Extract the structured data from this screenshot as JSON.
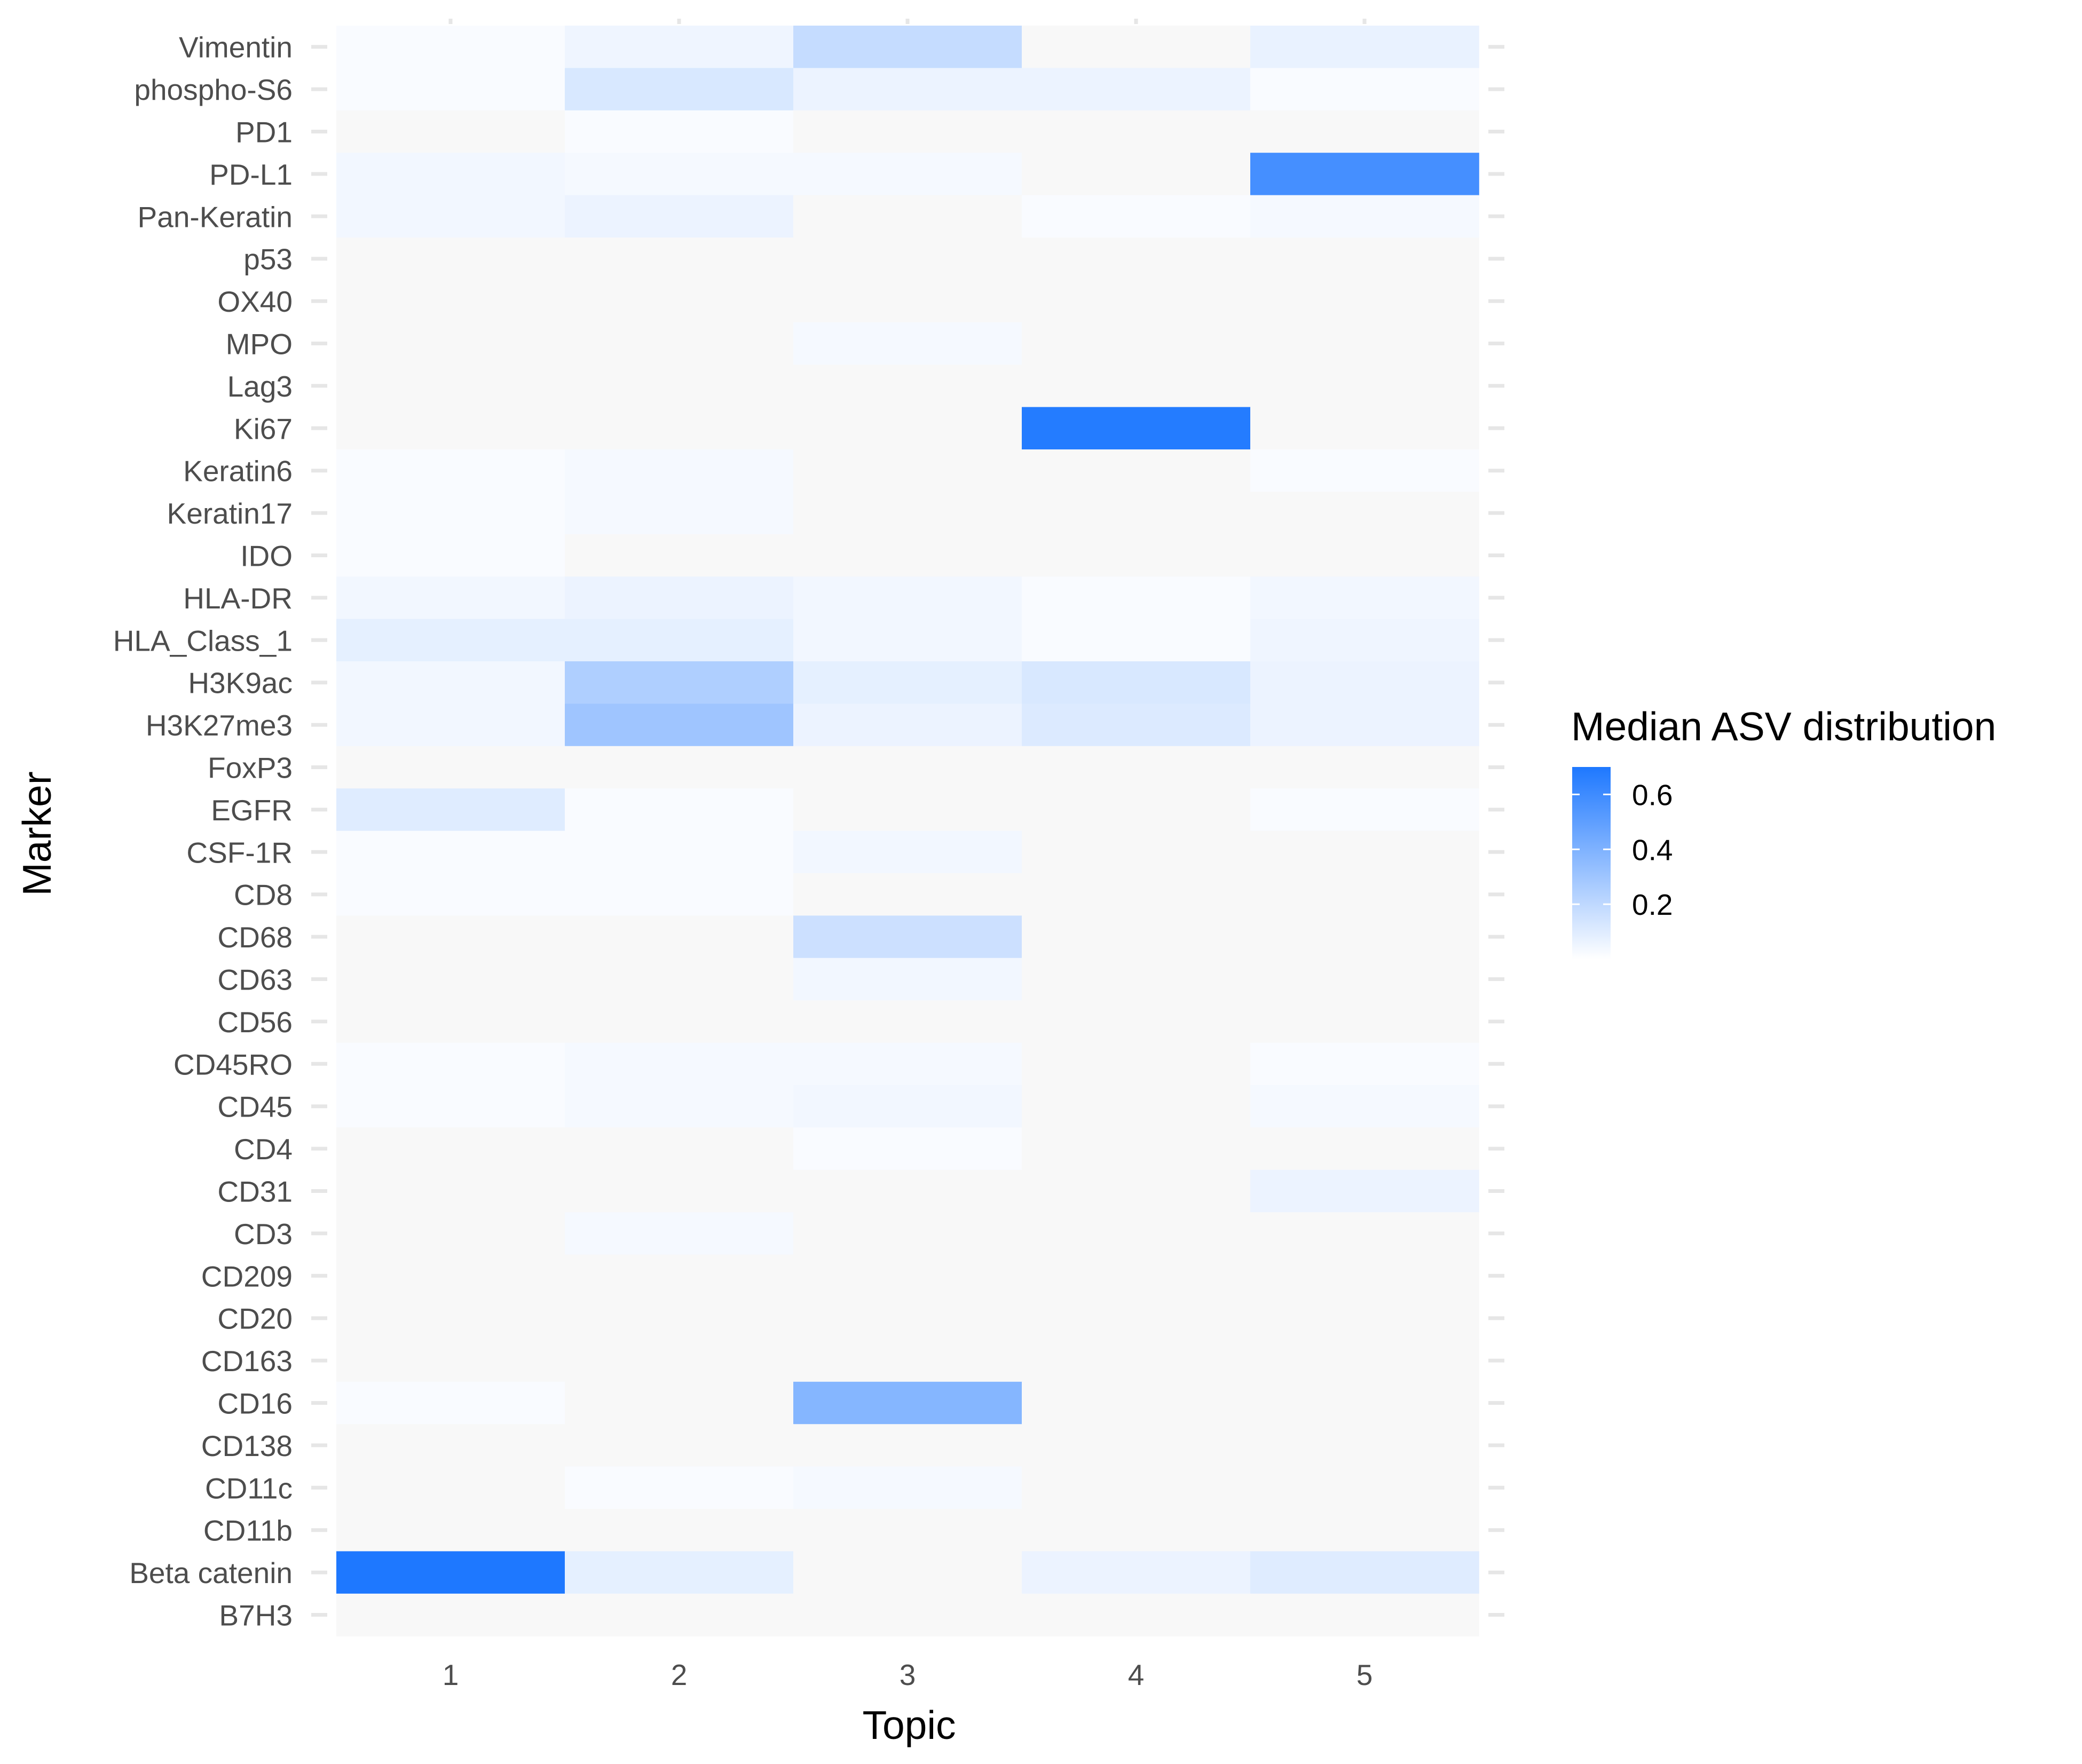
{
  "chart_data": {
    "type": "heatmap",
    "xlabel": "Topic",
    "ylabel": "Marker",
    "x_categories": [
      "1",
      "2",
      "3",
      "4",
      "5"
    ],
    "y_categories": [
      "Vimentin",
      "phospho-S6",
      "PD1",
      "PD-L1",
      "Pan-Keratin",
      "p53",
      "OX40",
      "MPO",
      "Lag3",
      "Ki67",
      "Keratin6",
      "Keratin17",
      "IDO",
      "HLA-DR",
      "HLA_Class_1",
      "H3K9ac",
      "H3K27me3",
      "FoxP3",
      "EGFR",
      "CSF-1R",
      "CD8",
      "CD68",
      "CD63",
      "CD56",
      "CD45RO",
      "CD45",
      "CD4",
      "CD31",
      "CD3",
      "CD209",
      "CD20",
      "CD163",
      "CD16",
      "CD138",
      "CD11c",
      "CD11b",
      "Beta catenin",
      "B7H3"
    ],
    "values": [
      [
        0.02,
        0.05,
        0.18,
        0.01,
        0.07
      ],
      [
        0.02,
        0.12,
        0.06,
        0.06,
        0.02
      ],
      [
        0.01,
        0.02,
        0.01,
        0.01,
        0.01
      ],
      [
        0.04,
        0.03,
        0.03,
        0.01,
        0.58
      ],
      [
        0.04,
        0.06,
        0.01,
        0.02,
        0.03
      ],
      [
        0.01,
        0.01,
        0.01,
        0.01,
        0.01
      ],
      [
        0.01,
        0.01,
        0.01,
        0.01,
        0.01
      ],
      [
        0.01,
        0.01,
        0.03,
        0.01,
        0.01
      ],
      [
        0.01,
        0.01,
        0.01,
        0.01,
        0.01
      ],
      [
        0.01,
        0.01,
        0.01,
        0.68,
        0.01
      ],
      [
        0.02,
        0.03,
        0.01,
        0.01,
        0.02
      ],
      [
        0.02,
        0.03,
        0.01,
        0.01,
        0.01
      ],
      [
        0.02,
        0.01,
        0.01,
        0.01,
        0.01
      ],
      [
        0.04,
        0.06,
        0.04,
        0.02,
        0.04
      ],
      [
        0.08,
        0.08,
        0.04,
        0.02,
        0.05
      ],
      [
        0.04,
        0.25,
        0.08,
        0.12,
        0.06
      ],
      [
        0.04,
        0.3,
        0.06,
        0.11,
        0.06
      ],
      [
        0.01,
        0.01,
        0.01,
        0.01,
        0.01
      ],
      [
        0.1,
        0.02,
        0.01,
        0.01,
        0.02
      ],
      [
        0.02,
        0.02,
        0.04,
        0.01,
        0.01
      ],
      [
        0.02,
        0.02,
        0.01,
        0.01,
        0.01
      ],
      [
        0.01,
        0.01,
        0.16,
        0.01,
        0.01
      ],
      [
        0.01,
        0.01,
        0.04,
        0.01,
        0.01
      ],
      [
        0.01,
        0.01,
        0.01,
        0.01,
        0.01
      ],
      [
        0.02,
        0.03,
        0.03,
        0.01,
        0.02
      ],
      [
        0.02,
        0.03,
        0.04,
        0.01,
        0.03
      ],
      [
        0.01,
        0.01,
        0.02,
        0.01,
        0.01
      ],
      [
        0.01,
        0.01,
        0.01,
        0.01,
        0.06
      ],
      [
        0.01,
        0.03,
        0.01,
        0.01,
        0.01
      ],
      [
        0.01,
        0.01,
        0.01,
        0.01,
        0.01
      ],
      [
        0.01,
        0.01,
        0.01,
        0.01,
        0.01
      ],
      [
        0.01,
        0.01,
        0.01,
        0.01,
        0.01
      ],
      [
        0.02,
        0.01,
        0.38,
        0.01,
        0.01
      ],
      [
        0.01,
        0.01,
        0.01,
        0.01,
        0.01
      ],
      [
        0.01,
        0.02,
        0.03,
        0.01,
        0.01
      ],
      [
        0.01,
        0.01,
        0.01,
        0.01,
        0.01
      ],
      [
        0.7,
        0.08,
        0.01,
        0.06,
        0.1
      ],
      [
        0.01,
        0.01,
        0.01,
        0.01,
        0.01
      ]
    ],
    "legend": {
      "title": "Median ASV distribution",
      "breaks": [
        0.6,
        0.4,
        0.2
      ],
      "break_labels": [
        "0.6",
        "0.4",
        "0.2"
      ],
      "range": [
        0.0,
        0.7
      ],
      "position": "right"
    },
    "colors": {
      "low": "#ffffff",
      "high": "#1e78ff",
      "panel_background": "#f8f8f8",
      "grid": "#e6e6e6",
      "empty_cell": "#f8f8f8"
    },
    "grid": true
  }
}
